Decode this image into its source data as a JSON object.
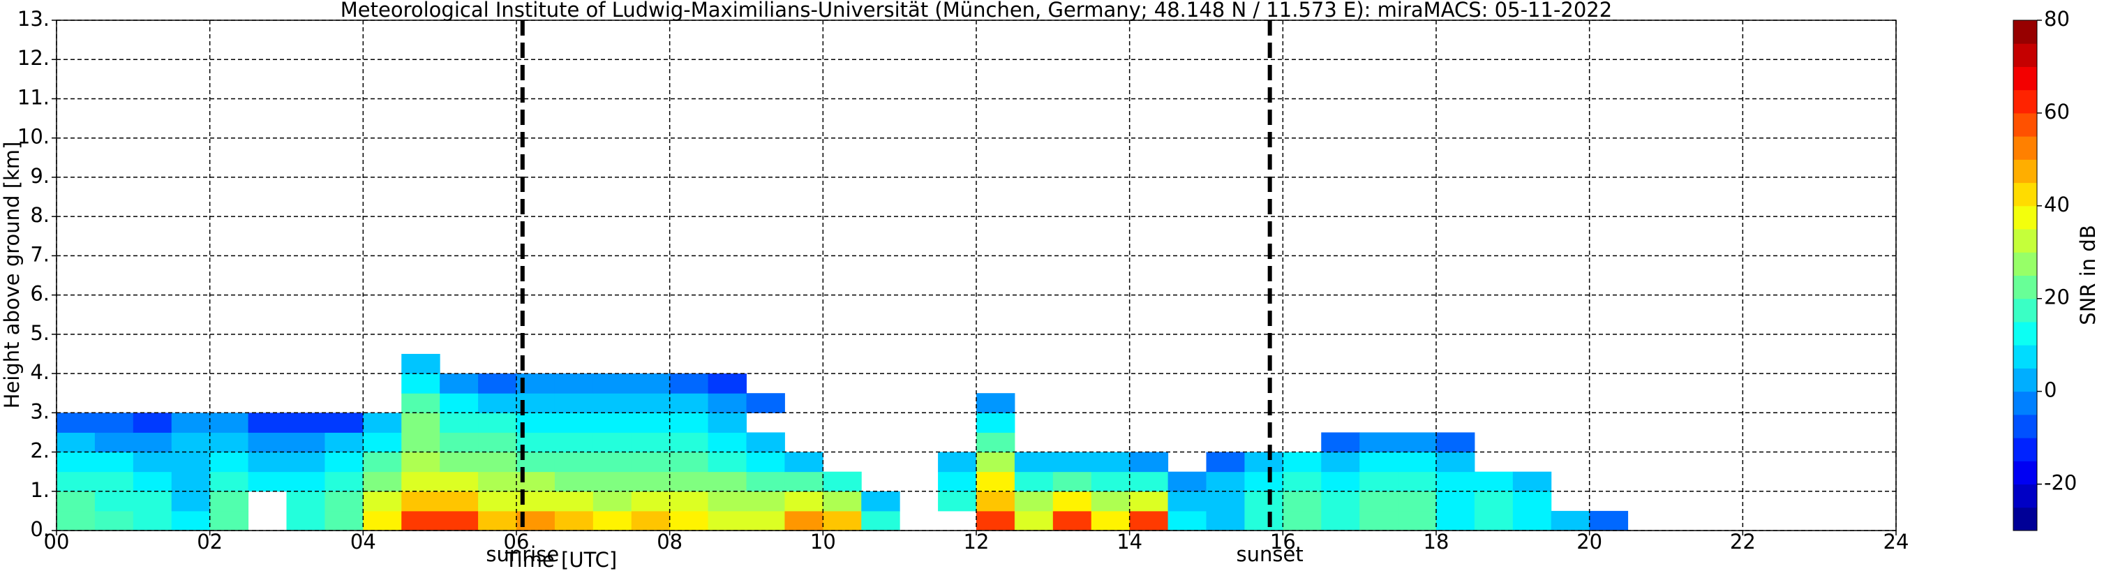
{
  "chart_data": {
    "type": "heatmap",
    "title": "Meteorological Institute of Ludwig-Maximilians-Universität (München, Germany; 48.148 N / 11.573 E):    miraMACS: 05-11-2022",
    "x_label": "Time [UTC]",
    "y_label": "Height above ground [km]",
    "colorbar_label": "SNR in dB",
    "colormap": "jet",
    "grid": true,
    "xlim": [
      0,
      24
    ],
    "ylim": [
      0,
      13
    ],
    "clim": [
      -30,
      80
    ],
    "xticks": [
      {
        "value": 0,
        "label": "00"
      },
      {
        "value": 2,
        "label": "02"
      },
      {
        "value": 4,
        "label": "04"
      },
      {
        "value": 6,
        "label": "06"
      },
      {
        "value": 8,
        "label": "08"
      },
      {
        "value": 10,
        "label": "10"
      },
      {
        "value": 12,
        "label": "12"
      },
      {
        "value": 14,
        "label": "14"
      },
      {
        "value": 16,
        "label": "16"
      },
      {
        "value": 18,
        "label": "18"
      },
      {
        "value": 20,
        "label": "20"
      },
      {
        "value": 22,
        "label": "22"
      },
      {
        "value": 24,
        "label": "24"
      }
    ],
    "yticks": [
      {
        "value": 0,
        "label": "0."
      },
      {
        "value": 1,
        "label": "1."
      },
      {
        "value": 2,
        "label": "2."
      },
      {
        "value": 3,
        "label": "3."
      },
      {
        "value": 4,
        "label": "4."
      },
      {
        "value": 5,
        "label": "5."
      },
      {
        "value": 6,
        "label": "6."
      },
      {
        "value": 7,
        "label": "7."
      },
      {
        "value": 8,
        "label": "8."
      },
      {
        "value": 9,
        "label": "9."
      },
      {
        "value": 10,
        "label": "10."
      },
      {
        "value": 11,
        "label": "11."
      },
      {
        "value": 12,
        "label": "12."
      },
      {
        "value": 13,
        "label": "13."
      }
    ],
    "cticks": [
      -20,
      0,
      20,
      40,
      60,
      80
    ],
    "annotations": [
      {
        "text": "sunrise",
        "x": 6.08
      },
      {
        "text": "sunset",
        "x": 15.83
      }
    ],
    "xbins": [
      0,
      0.5,
      1,
      1.5,
      2,
      2.5,
      3,
      3.5,
      4,
      4.5,
      5,
      5.5,
      6,
      6.5,
      7,
      7.5,
      8,
      8.5,
      9,
      9.5,
      10,
      10.5,
      11,
      11.5,
      12,
      12.5,
      13,
      13.5,
      14,
      14.5,
      15,
      15.5,
      16,
      16.5,
      17,
      17.5,
      18,
      18.5,
      19,
      19.5,
      20,
      20.5,
      21,
      21.5,
      22,
      22.5,
      23,
      23.5,
      24
    ],
    "ybins": [
      0,
      0.5,
      1,
      1.5,
      2,
      2.5,
      3,
      3.5,
      4,
      4.5
    ],
    "z": [
      [
        20,
        18,
        15,
        10,
        20,
        null,
        15,
        20,
        40,
        60,
        60,
        45,
        50,
        45,
        40,
        45,
        40,
        35,
        35,
        50,
        45,
        15,
        null,
        null,
        60,
        35,
        60,
        40,
        60,
        10,
        5,
        15,
        20,
        15,
        20,
        20,
        10,
        15,
        10,
        5,
        -5,
        null,
        null,
        null,
        null,
        null,
        null,
        null
      ],
      [
        20,
        15,
        15,
        5,
        20,
        null,
        15,
        20,
        35,
        45,
        45,
        35,
        35,
        35,
        30,
        35,
        35,
        30,
        30,
        35,
        30,
        5,
        null,
        15,
        45,
        30,
        40,
        30,
        35,
        5,
        5,
        15,
        20,
        15,
        20,
        20,
        10,
        15,
        10,
        null,
        null,
        null,
        null,
        null,
        null,
        null,
        null,
        null
      ],
      [
        15,
        15,
        10,
        5,
        15,
        10,
        10,
        15,
        25,
        35,
        35,
        30,
        30,
        25,
        25,
        25,
        25,
        25,
        20,
        20,
        15,
        null,
        null,
        10,
        40,
        15,
        20,
        15,
        15,
        0,
        5,
        10,
        15,
        10,
        15,
        15,
        10,
        10,
        5,
        null,
        null,
        null,
        null,
        null,
        null,
        null,
        null,
        null
      ],
      [
        10,
        10,
        5,
        5,
        10,
        5,
        5,
        10,
        20,
        30,
        25,
        25,
        20,
        20,
        20,
        20,
        20,
        15,
        10,
        5,
        null,
        null,
        null,
        5,
        30,
        5,
        5,
        5,
        0,
        null,
        -5,
        5,
        10,
        5,
        10,
        10,
        5,
        null,
        null,
        null,
        null,
        null,
        null,
        null,
        null,
        null,
        null,
        null
      ],
      [
        5,
        0,
        0,
        5,
        5,
        0,
        0,
        5,
        10,
        25,
        20,
        20,
        15,
        15,
        15,
        15,
        15,
        10,
        5,
        null,
        null,
        null,
        null,
        null,
        20,
        null,
        null,
        null,
        null,
        null,
        null,
        null,
        null,
        -5,
        0,
        0,
        -5,
        null,
        null,
        null,
        null,
        null,
        null,
        null,
        null,
        null,
        null,
        null
      ],
      [
        -5,
        -5,
        -10,
        0,
        0,
        -10,
        -10,
        -10,
        5,
        25,
        15,
        15,
        10,
        10,
        10,
        10,
        10,
        5,
        null,
        null,
        null,
        null,
        null,
        null,
        10,
        null,
        null,
        null,
        null,
        null,
        null,
        null,
        null,
        null,
        null,
        null,
        null,
        null,
        null,
        null,
        null,
        null,
        null,
        null,
        null,
        null,
        null,
        null
      ],
      [
        null,
        null,
        null,
        null,
        null,
        null,
        null,
        null,
        null,
        20,
        10,
        5,
        5,
        5,
        5,
        5,
        5,
        0,
        -5,
        null,
        null,
        null,
        null,
        null,
        0,
        null,
        null,
        null,
        null,
        null,
        null,
        null,
        null,
        null,
        null,
        null,
        null,
        null,
        null,
        null,
        null,
        null,
        null,
        null,
        null,
        null,
        null,
        null
      ],
      [
        null,
        null,
        null,
        null,
        null,
        null,
        null,
        null,
        null,
        10,
        0,
        -5,
        0,
        0,
        0,
        0,
        -5,
        -10,
        null,
        null,
        null,
        null,
        null,
        null,
        null,
        null,
        null,
        null,
        null,
        null,
        null,
        null,
        null,
        null,
        null,
        null,
        null,
        null,
        null,
        null,
        null,
        null,
        null,
        null,
        null,
        null,
        null,
        null
      ],
      [
        null,
        null,
        null,
        null,
        null,
        null,
        null,
        null,
        null,
        5,
        null,
        null,
        null,
        null,
        null,
        null,
        null,
        null,
        null,
        null,
        null,
        null,
        null,
        null,
        null,
        null,
        null,
        null,
        null,
        null,
        null,
        null,
        null,
        null,
        null,
        null,
        null,
        null,
        null,
        null,
        null,
        null,
        null,
        null,
        null,
        null,
        null,
        null
      ]
    ]
  }
}
